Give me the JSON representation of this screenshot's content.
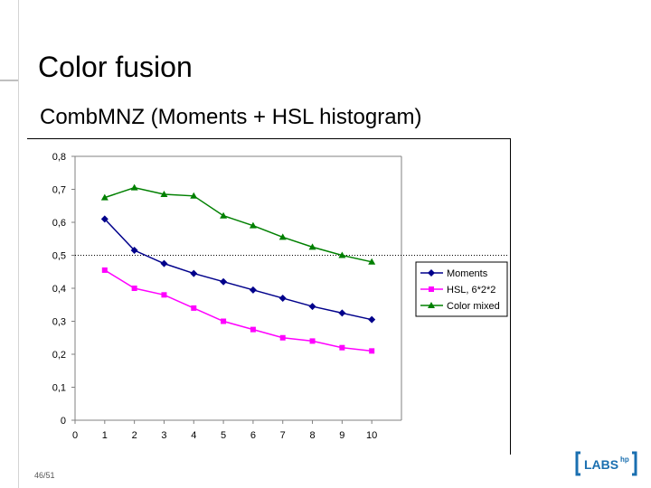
{
  "slide": {
    "title": "Color fusion",
    "subtitle": "CombMNZ (Moments + HSL histogram)",
    "page_number": "46/51",
    "logo_text": "LABS",
    "logo_superscript": "hp"
  },
  "colors": {
    "moments": "#00008b",
    "hsl": "#ff00ff",
    "color_mixed": "#008000",
    "axis": "#808080"
  },
  "chart_data": {
    "type": "line",
    "x": [
      1,
      2,
      3,
      4,
      5,
      6,
      7,
      8,
      9,
      10
    ],
    "xticks": [
      "0",
      "1",
      "2",
      "3",
      "4",
      "5",
      "6",
      "7",
      "8",
      "9",
      "10"
    ],
    "yticks": [
      "0",
      "0,1",
      "0,2",
      "0,3",
      "0,4",
      "0,5",
      "0,6",
      "0,7",
      "0,8"
    ],
    "xlim": [
      0,
      11
    ],
    "ylim": [
      0,
      0.8
    ],
    "reference_line": 0.5,
    "legend_position": "right",
    "series": [
      {
        "name": "Moments",
        "marker": "diamond",
        "color": "#00008b",
        "values": [
          0.61,
          0.515,
          0.475,
          0.445,
          0.42,
          0.395,
          0.37,
          0.345,
          0.325,
          0.305
        ]
      },
      {
        "name": "HSL, 6*2*2",
        "marker": "square",
        "color": "#ff00ff",
        "values": [
          0.455,
          0.4,
          0.38,
          0.34,
          0.3,
          0.275,
          0.25,
          0.24,
          0.22,
          0.21
        ]
      },
      {
        "name": "Color mixed",
        "marker": "triangle",
        "color": "#008000",
        "values": [
          0.675,
          0.705,
          0.685,
          0.68,
          0.62,
          0.59,
          0.555,
          0.525,
          0.5,
          0.48
        ]
      }
    ]
  }
}
